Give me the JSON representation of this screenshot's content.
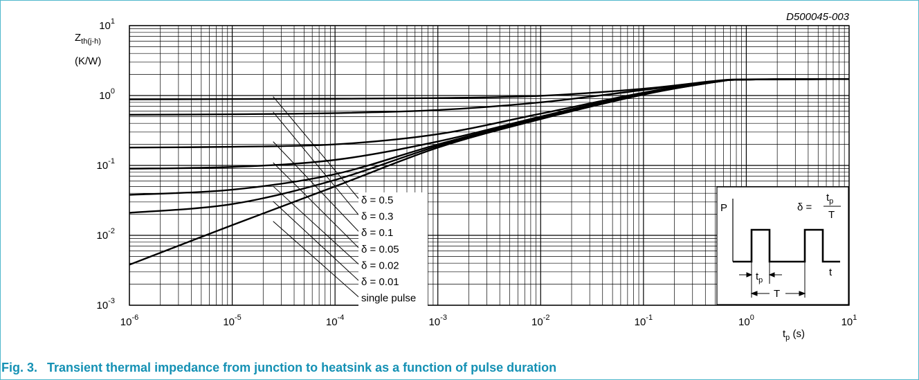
{
  "caption": {
    "number": "Fig. 3.",
    "text": "Transient thermal impedance from junction to heatsink as a function of pulse duration"
  },
  "colors": {
    "caption": "#1591b4",
    "frame": "#4fb8cc",
    "ink": "#000000"
  },
  "chart_data": {
    "type": "line",
    "reference": "D500045-003",
    "ylabel": {
      "symbol": "Z",
      "subscript": "th(j-h)",
      "unit": "(K/W)"
    },
    "xlabel": {
      "symbol": "t",
      "subscript": "p",
      "unit": " (s)"
    },
    "x_scale": "log",
    "y_scale": "log",
    "xlim": [
      1e-06,
      10
    ],
    "ylim": [
      0.001,
      10
    ],
    "grid": true,
    "x_ticks": [
      {
        "base": "10",
        "exp": "-6"
      },
      {
        "base": "10",
        "exp": "-5"
      },
      {
        "base": "10",
        "exp": "-4"
      },
      {
        "base": "10",
        "exp": "-3"
      },
      {
        "base": "10",
        "exp": "-2"
      },
      {
        "base": "10",
        "exp": "-1"
      },
      {
        "base": "10",
        "exp": "0"
      },
      {
        "base": "10",
        "exp": "1"
      }
    ],
    "y_ticks": [
      {
        "base": "10",
        "exp": "-3"
      },
      {
        "base": "10",
        "exp": "-2"
      },
      {
        "base": "10",
        "exp": "-1"
      },
      {
        "base": "10",
        "exp": "0"
      },
      {
        "base": "10",
        "exp": "1"
      }
    ],
    "series": [
      {
        "name": "δ = 0.5",
        "x": [
          1e-06,
          1e-05,
          0.0001,
          0.001,
          0.01,
          0.1,
          0.5,
          1,
          10
        ],
        "y": [
          0.88,
          0.89,
          0.9,
          0.92,
          0.99,
          1.25,
          1.62,
          1.7,
          1.72
        ]
      },
      {
        "name": "δ = 0.3",
        "x": [
          1e-06,
          1e-05,
          0.0001,
          0.001,
          0.01,
          0.1,
          0.5,
          1,
          10
        ],
        "y": [
          0.53,
          0.54,
          0.56,
          0.62,
          0.8,
          1.2,
          1.6,
          1.7,
          1.72
        ]
      },
      {
        "name": "δ = 0.1",
        "x": [
          1e-06,
          1e-05,
          0.0001,
          0.001,
          0.01,
          0.1,
          0.5,
          1,
          10
        ],
        "y": [
          0.18,
          0.185,
          0.2,
          0.28,
          0.55,
          1.1,
          1.58,
          1.69,
          1.72
        ]
      },
      {
        "name": "δ = 0.05",
        "x": [
          1e-06,
          1e-05,
          0.0001,
          0.001,
          0.01,
          0.1,
          0.5,
          1,
          10
        ],
        "y": [
          0.09,
          0.095,
          0.12,
          0.22,
          0.5,
          1.08,
          1.57,
          1.69,
          1.72
        ]
      },
      {
        "name": "δ = 0.02",
        "x": [
          1e-06,
          1e-05,
          0.0001,
          0.001,
          0.01,
          0.1,
          0.5,
          1,
          10
        ],
        "y": [
          0.038,
          0.045,
          0.075,
          0.2,
          0.48,
          1.05,
          1.57,
          1.69,
          1.72
        ]
      },
      {
        "name": "δ = 0.01",
        "x": [
          1e-06,
          1e-05,
          0.0001,
          0.001,
          0.01,
          0.1,
          0.5,
          1,
          10
        ],
        "y": [
          0.021,
          0.028,
          0.062,
          0.19,
          0.47,
          1.04,
          1.56,
          1.69,
          1.72
        ]
      },
      {
        "name": "single pulse",
        "x": [
          1e-06,
          1e-05,
          0.0001,
          0.001,
          0.01,
          0.1,
          0.5,
          1,
          10
        ],
        "y": [
          0.0038,
          0.014,
          0.05,
          0.18,
          0.46,
          1.03,
          1.56,
          1.69,
          1.72
        ]
      }
    ],
    "inset": {
      "p_label": "P",
      "t_label": "t",
      "delta_eq": "δ =",
      "frac_num": "t",
      "frac_num_sub": "p",
      "frac_den": "T",
      "tp_label": "t",
      "tp_sub": "p",
      "period_label": "T"
    }
  }
}
